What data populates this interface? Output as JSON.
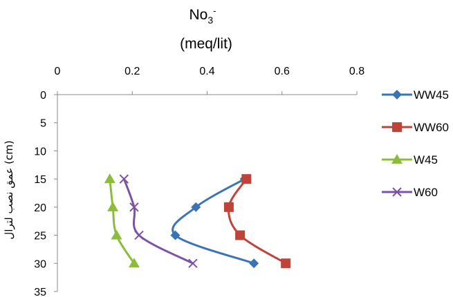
{
  "chart_data": {
    "type": "line",
    "title": "No3-",
    "title_main": "No",
    "title_sub": "3",
    "title_sup": "-",
    "title_unit": "(meq/lit)",
    "xlabel": "(meq/lit)",
    "ylabel": "عمق نصب لترال (cm)",
    "x_axis_position": "top",
    "y_axis_inverted": true,
    "xlim": [
      0,
      0.8
    ],
    "ylim": [
      0,
      35
    ],
    "x_ticks": [
      "0",
      "0.2",
      "0.4",
      "0.6",
      "0.8"
    ],
    "y_ticks": [
      "0",
      "5",
      "10",
      "15",
      "20",
      "25",
      "30",
      "35"
    ],
    "grid": false,
    "legend_position": "right",
    "series": [
      {
        "name": "WW45",
        "color": "#3a74b5",
        "marker": "diamond",
        "points": [
          [
            0.5,
            15
          ],
          [
            0.37,
            20
          ],
          [
            0.315,
            25
          ],
          [
            0.525,
            30
          ]
        ]
      },
      {
        "name": "WW60",
        "color": "#c0433a",
        "marker": "square",
        "points": [
          [
            0.505,
            15
          ],
          [
            0.458,
            20
          ],
          [
            0.488,
            25
          ],
          [
            0.61,
            30
          ]
        ]
      },
      {
        "name": "W45",
        "color": "#8cbc3c",
        "marker": "triangle",
        "points": [
          [
            0.14,
            15
          ],
          [
            0.148,
            20
          ],
          [
            0.158,
            25
          ],
          [
            0.205,
            30
          ]
        ]
      },
      {
        "name": "W60",
        "color": "#7b53a3",
        "marker": "x",
        "points": [
          [
            0.178,
            15
          ],
          [
            0.205,
            20
          ],
          [
            0.218,
            25
          ],
          [
            0.362,
            30
          ]
        ]
      }
    ]
  }
}
